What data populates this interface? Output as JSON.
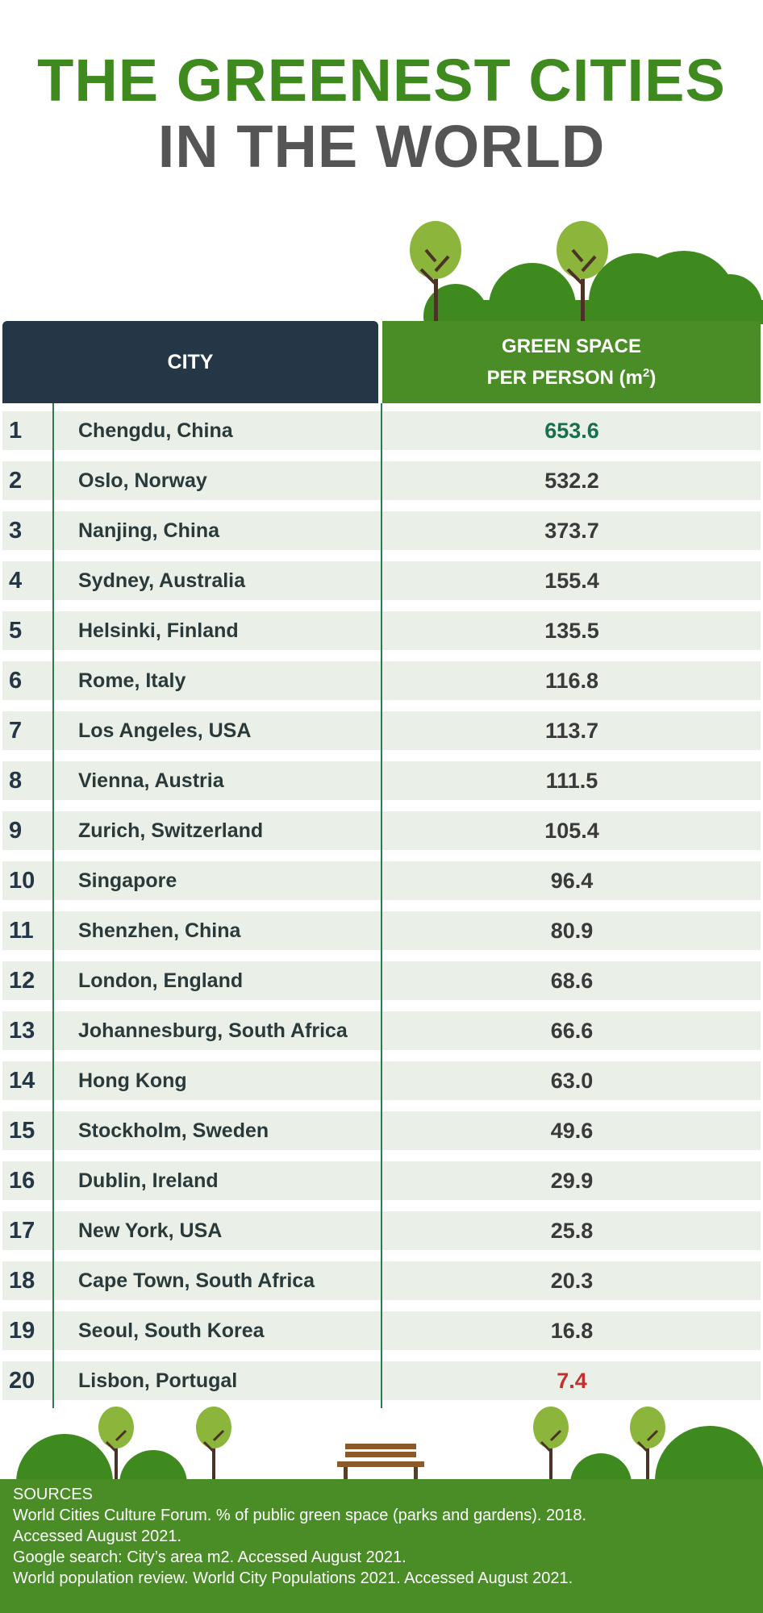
{
  "title_line1": "THE GREENEST CITIES",
  "title_line2": "IN THE WORLD",
  "header": {
    "city": "CITY",
    "green_line1": "GREEN SPACE",
    "green_line2": "PER PERSON (m",
    "green_sup": "2",
    "green_close": ")"
  },
  "chart_data": {
    "type": "table",
    "title": "THE GREENEST CITIES IN THE WORLD",
    "columns": [
      "CITY",
      "GREEN SPACE PER PERSON (m2)"
    ],
    "rows": [
      {
        "rank": "1",
        "city": "Chengdu, China",
        "value": "653.6"
      },
      {
        "rank": "2",
        "city": "Oslo, Norway",
        "value": "532.2"
      },
      {
        "rank": "3",
        "city": "Nanjing, China",
        "value": "373.7"
      },
      {
        "rank": "4",
        "city": "Sydney, Australia",
        "value": "155.4"
      },
      {
        "rank": "5",
        "city": "Helsinki, Finland",
        "value": "135.5"
      },
      {
        "rank": "6",
        "city": "Rome, Italy",
        "value": "116.8"
      },
      {
        "rank": "7",
        "city": "Los Angeles, USA",
        "value": "113.7"
      },
      {
        "rank": "8",
        "city": "Vienna, Austria",
        "value": "111.5"
      },
      {
        "rank": "9",
        "city": "Zurich, Switzerland",
        "value": "105.4"
      },
      {
        "rank": "10",
        "city": "Singapore",
        "value": "96.4"
      },
      {
        "rank": "11",
        "city": "Shenzhen, China",
        "value": "80.9"
      },
      {
        "rank": "12",
        "city": "London, England",
        "value": "68.6"
      },
      {
        "rank": "13",
        "city": "Johannesburg, South Africa",
        "value": "66.6"
      },
      {
        "rank": "14",
        "city": "Hong Kong",
        "value": "63.0"
      },
      {
        "rank": "15",
        "city": "Stockholm, Sweden",
        "value": "49.6"
      },
      {
        "rank": "16",
        "city": "Dublin, Ireland",
        "value": "29.9"
      },
      {
        "rank": "17",
        "city": "New York, USA",
        "value": "25.8"
      },
      {
        "rank": "18",
        "city": "Cape Town, South Africa",
        "value": "20.3"
      },
      {
        "rank": "19",
        "city": "Seoul, South Korea",
        "value": "16.8"
      },
      {
        "rank": "20",
        "city": "Lisbon, Portugal",
        "value": "7.4"
      }
    ]
  },
  "colors": {
    "title_green": "#3f8a1f",
    "title_gray": "#555555",
    "header_dark": "#253646",
    "header_green": "#4a8c26",
    "row_bg": "#eaf0e8",
    "top_value": "#17704a",
    "bottom_value": "#c4302b"
  },
  "sources": {
    "heading": "SOURCES",
    "lines": [
      "World Cities Culture Forum. % of public green space (parks and gardens). 2018.",
      "Accessed August 2021.",
      "Google search: City’s area m2. Accessed August 2021.",
      "World population review. World City Populations 2021. Accessed August 2021."
    ]
  },
  "icons": [
    "tree-icon",
    "bush-icon",
    "bench-icon"
  ]
}
